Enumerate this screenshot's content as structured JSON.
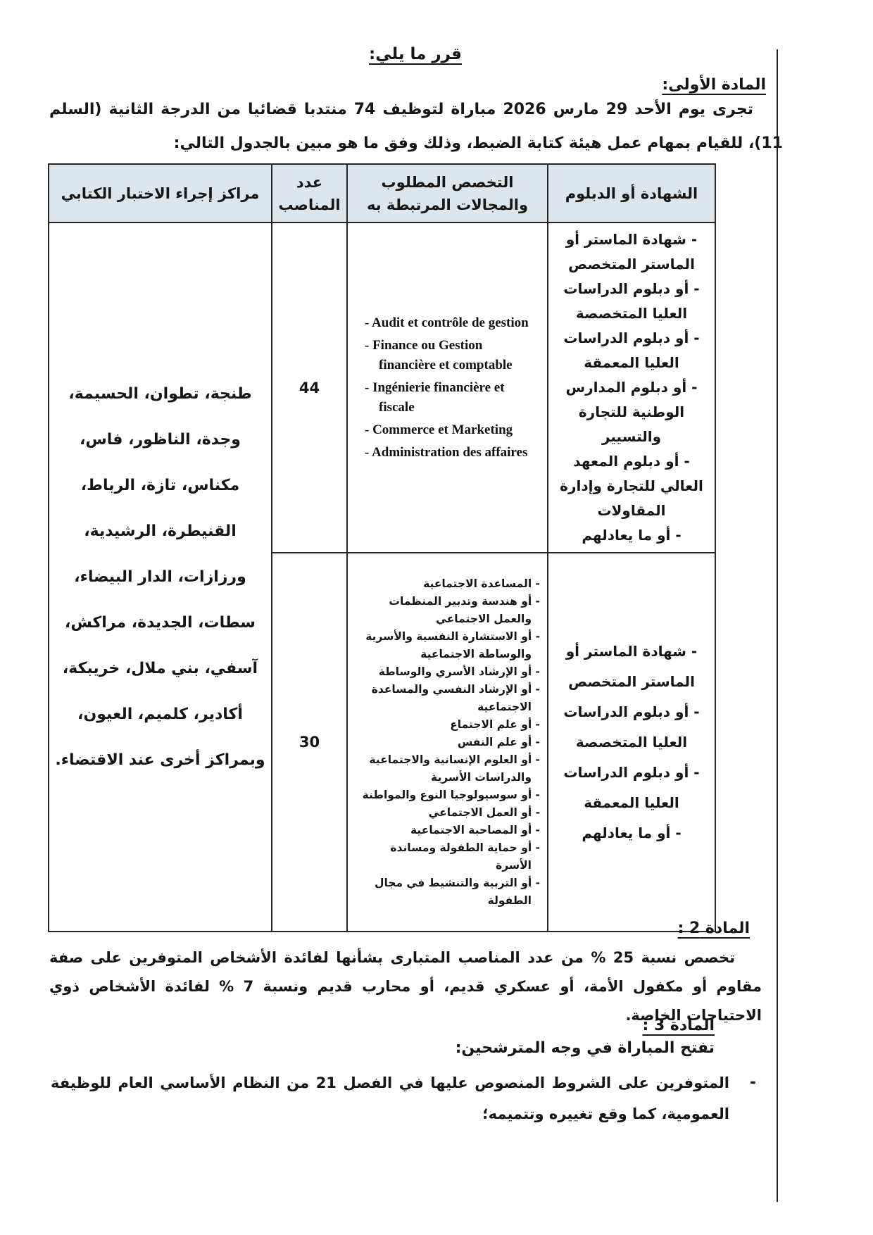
{
  "decision_line": "قرر ما يلي:",
  "article1": {
    "heading": "المادة الأولى:",
    "paragraph": "تجرى يوم الأحد 29 مارس 2026 مباراة لتوظيف 74 منتدبا قضائيا من الدرجة الثانية (السلم 11)، للقيام بمهام عمل هيئة كتابة الضبط، وذلك وفق ما هو مبين بالجدول التالي:"
  },
  "table": {
    "headers": [
      "الشهادة أو الدبلوم",
      "التخصص المطلوب والمجالات المرتبطة به",
      "عدد المناصب",
      "مراكز إجراء الاختبار الكتابي"
    ],
    "rows": [
      {
        "positions": "44",
        "diplomas": [
          "- شهادة الماستر أو الماستر المتخصص",
          "- أو دبلوم الدراسات العليا المتخصصة",
          "- أو دبلوم الدراسات العليا المعمقة",
          "- أو دبلوم المدارس الوطنية للتجارة والتسيير",
          "- أو دبلوم المعهد العالي للتجارة وإدارة المقاولات",
          "- أو ما يعادلهم"
        ],
        "specialties": [
          "- Audit et contrôle de gestion",
          "- Finance ou Gestion financière et comptable",
          "- Ingénierie financière et fiscale",
          "- Commerce et Marketing",
          "- Administration des affaires"
        ]
      },
      {
        "positions": "30",
        "diplomas": [
          "- شهادة الماستر أو الماستر المتخصص",
          "- أو دبلوم الدراسات العليا المتخصصة",
          "- أو دبلوم الدراسات العليا المعمقة",
          "- أو ما يعادلهم"
        ],
        "specialties": [
          "- المساعدة الاجتماعية",
          "- أو هندسة وتدبير المنظمات والعمل الاجتماعي",
          "- أو الاستشارة النفسية والأسرية والوساطة الاجتماعية",
          "- أو الإرشاد الأسري والوساطة",
          "- أو الإرشاد النفسي والمساعدة الاجتماعية",
          "- أو علم الاجتماع",
          "- أو علم النفس",
          "- أو العلوم الإنسانية والاجتماعية والدراسات الأسرية",
          "- أو سوسيولوجيا النوع والمواطنة",
          "- أو العمل الاجتماعي",
          "- أو المصاحبة الاجتماعية",
          "- أو حماية الطفولة ومساندة الأسرة",
          "- أو التربية والتنشيط في مجال الطفولة"
        ]
      }
    ],
    "centers": "طنجة، تطوان، الحسيمة، وجدة، الناظور، فاس، مكناس، تازة، الرباط، القنيطرة، الرشيدية، ورزازات، الدار البيضاء، سطات، الجديدة، مراكش، آسفي، بني ملال، خريبكة، أكادير، كلميم، العيون، وبمراكز أخرى عند الاقتضاء."
  },
  "article2": {
    "heading": "المادة 2 :",
    "paragraph": "تخصص نسبة 25 % من عدد المناصب المتبارى بشأنها لفائدة الأشخاص المتوفرين على صفة مقاوم أو مكفول الأمة، أو عسكري قديم، أو محارب قديم ونسبة 7 % لفائدة الأشخاص ذوي الاحتياجات الخاصة."
  },
  "article3": {
    "heading": "المادة 3 :",
    "intro": "تفتح المباراة في وجه المترشحين:",
    "bullet_dash": "-",
    "bullet": "المتوفرين على الشروط المنصوص عليها في الفصل 21 من النظام الأساسي العام للوظيفة العمومية، كما وقع تغييره وتتميمه؛"
  },
  "colors": {
    "table_header_fill": "#dde6ec"
  }
}
